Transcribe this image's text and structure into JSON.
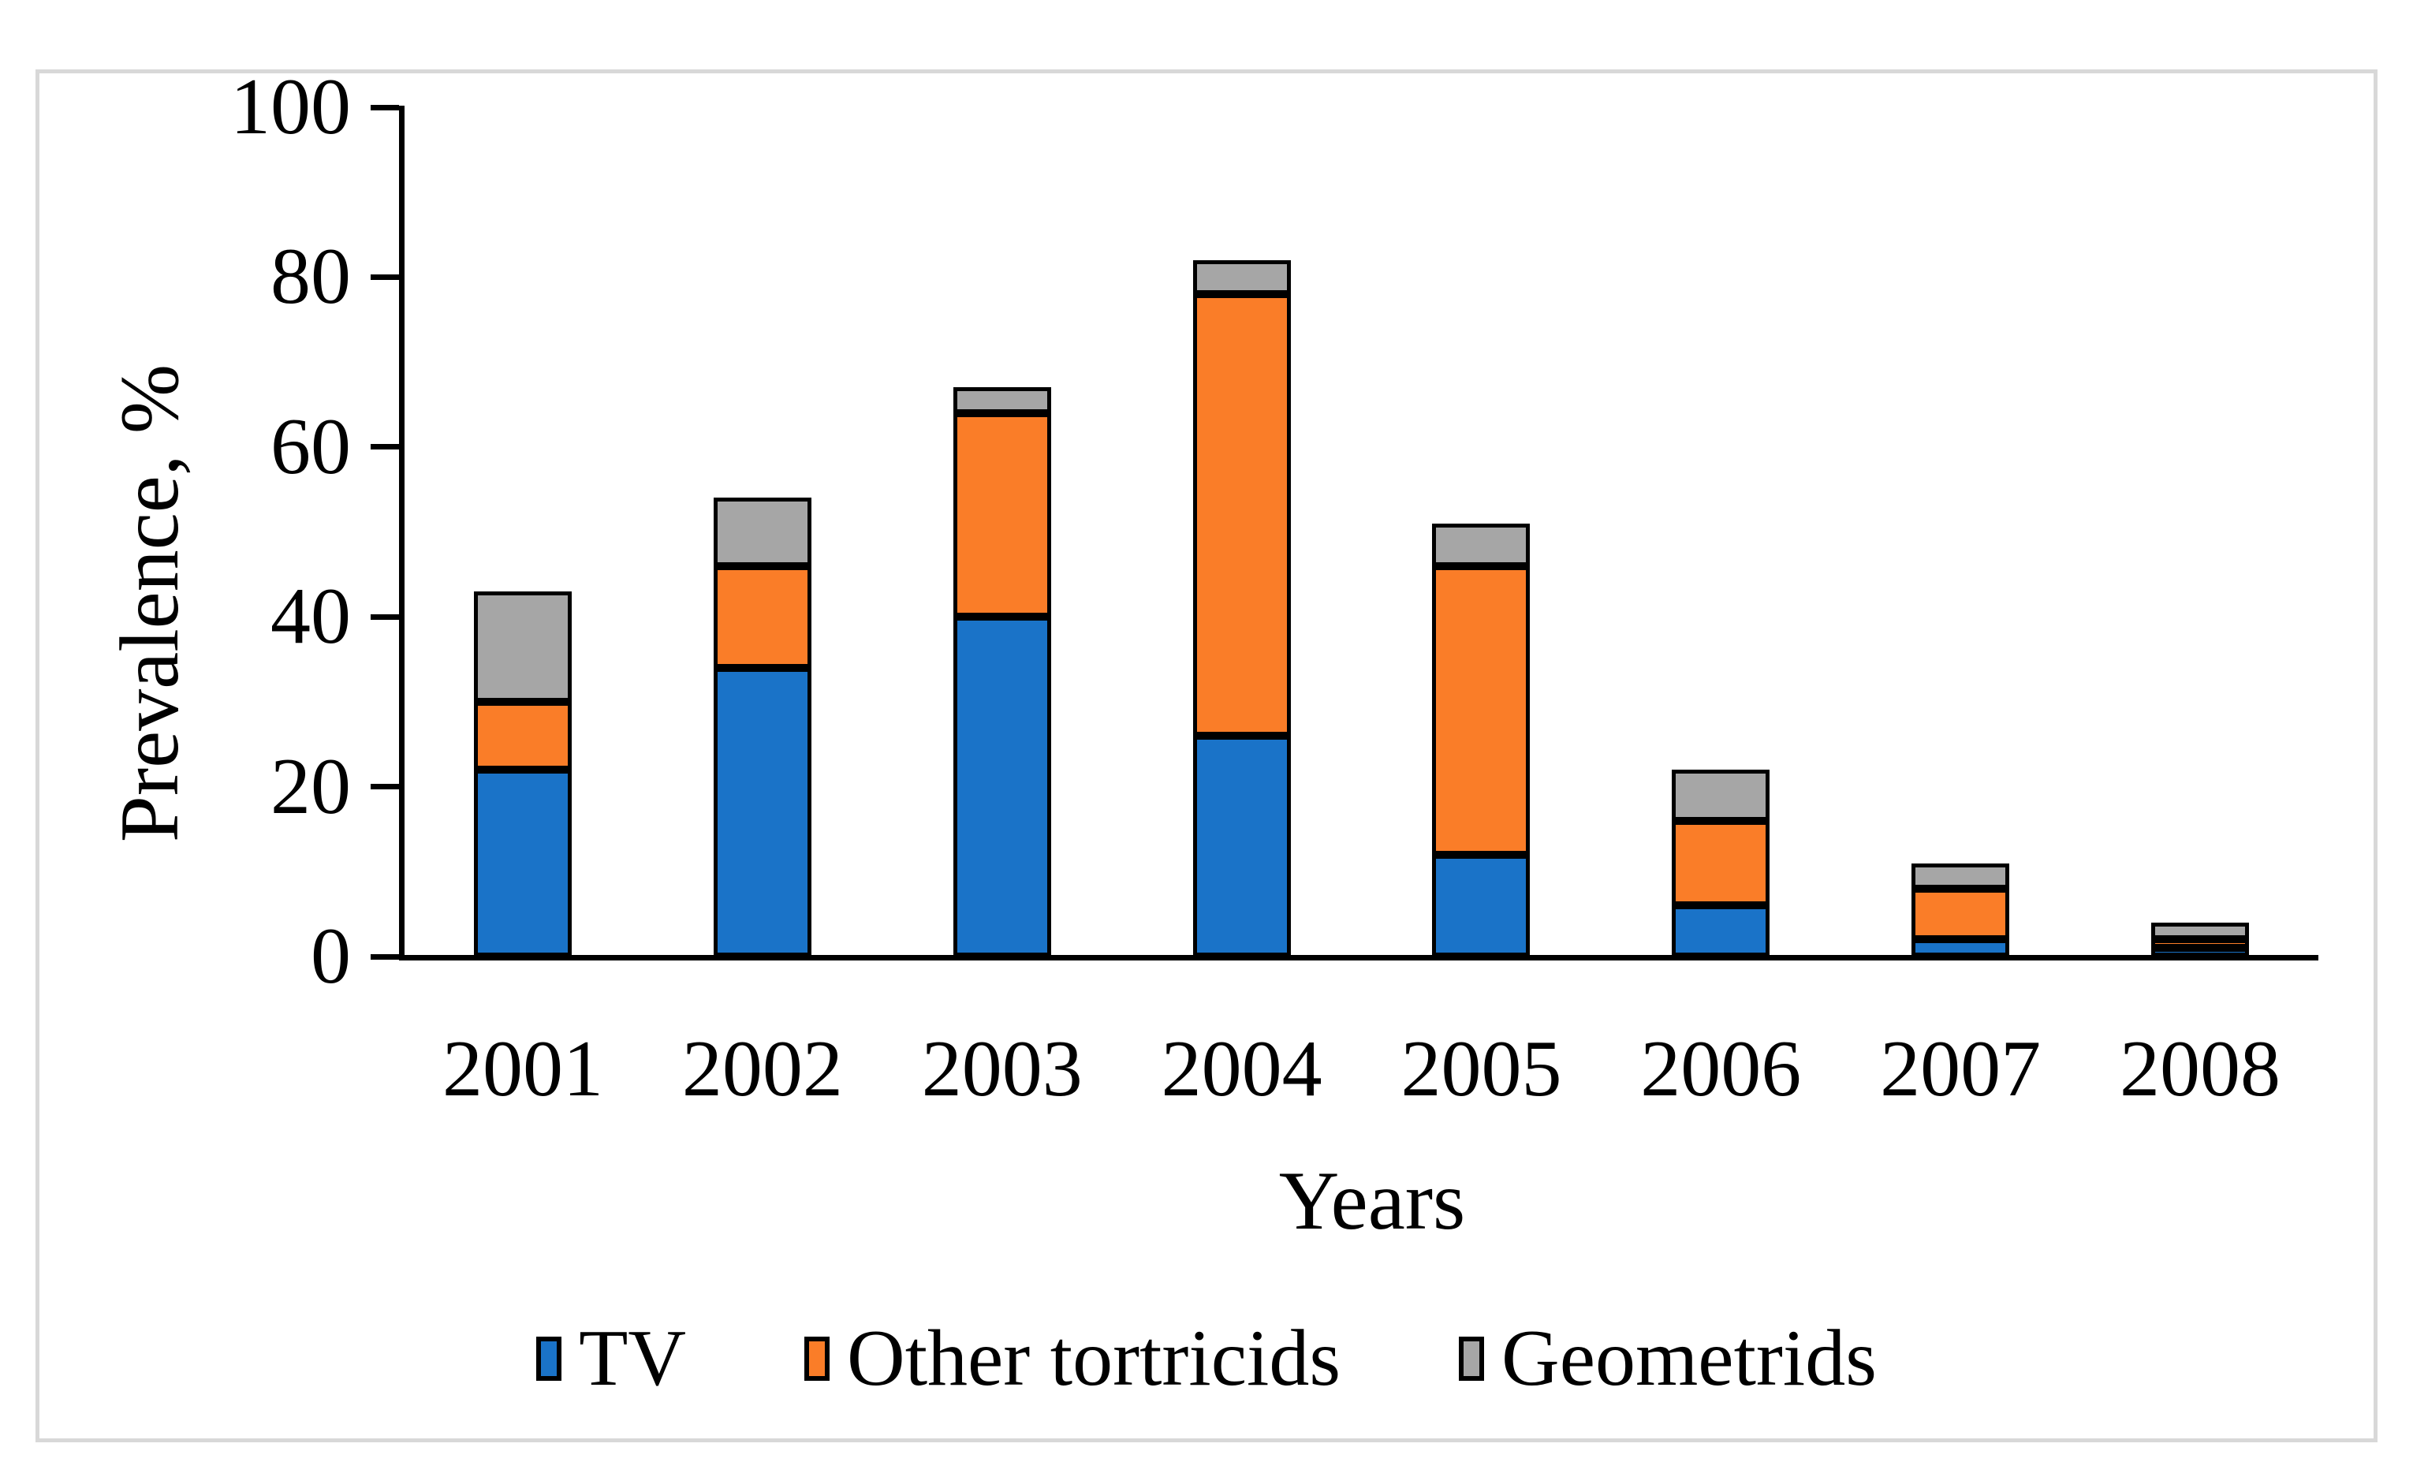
{
  "figure": {
    "background": "#ffffff",
    "border_color": "#d8d8d8",
    "bar_border_color": "#000000"
  },
  "chart_data": {
    "type": "bar",
    "stacked": true,
    "title": "",
    "xlabel": "Years",
    "ylabel": "Prevalence, %",
    "categories": [
      "2001",
      "2002",
      "2003",
      "2004",
      "2005",
      "2006",
      "2007",
      "2008"
    ],
    "series": [
      {
        "name": "TV",
        "color": "#1a73c8",
        "values": [
          22,
          34,
          40,
          26,
          12,
          6,
          2,
          1
        ]
      },
      {
        "name": "Other tortricids",
        "color": "#fa7d28",
        "values": [
          8,
          12,
          24,
          52,
          34,
          10,
          6,
          1
        ]
      },
      {
        "name": "Geometrids",
        "color": "#a6a6a6",
        "values": [
          13,
          8,
          3,
          4,
          5,
          6,
          3,
          2
        ]
      }
    ],
    "totals": [
      43,
      54,
      67,
      82,
      51,
      22,
      11,
      4
    ],
    "ylim": [
      0,
      100
    ],
    "yticks": [
      0,
      20,
      40,
      60,
      80,
      100
    ],
    "grid": false,
    "legend_position": "bottom"
  }
}
